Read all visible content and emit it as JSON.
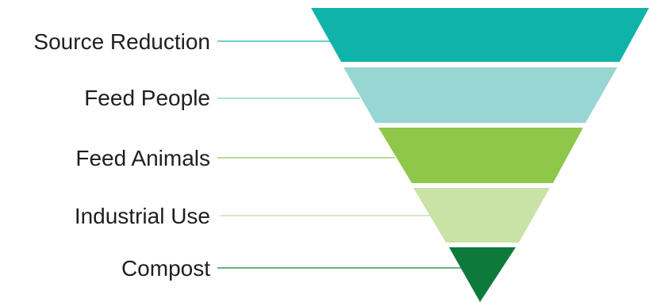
{
  "diagram": {
    "type": "inverted-pyramid",
    "tiers": [
      {
        "label": "Source Reduction",
        "color": "#0fb3a9",
        "line_color": "#17b3a5"
      },
      {
        "label": "Feed People",
        "color": "#98d6d3",
        "line_color": "#7ccdc9"
      },
      {
        "label": "Feed Animals",
        "color": "#8fc74a",
        "line_color": "#8fc74a"
      },
      {
        "label": "Industrial Use",
        "color": "#c9e2a6",
        "line_color": "#b9d996"
      },
      {
        "label": "Compost",
        "color": "#0e7a3a",
        "line_color": "#1c7d40"
      }
    ]
  }
}
